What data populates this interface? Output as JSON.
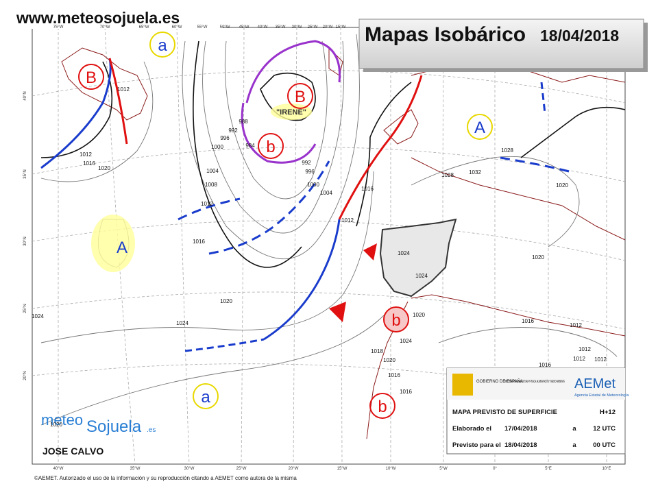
{
  "header": {
    "site": "www.meteosojuela.es",
    "title": "Mapas Isobárico",
    "date": "18/04/2018"
  },
  "systems": [
    "B",
    "B",
    "b",
    "A",
    "A",
    "a",
    "a",
    "b",
    "b"
  ],
  "storm_name": "\"IRENE\"",
  "isobar_labels": [
    "1012",
    "1012",
    "1016",
    "1020",
    "996",
    "1000",
    "1004",
    "1008",
    "1012",
    "1016",
    "1020",
    "1024",
    "1024",
    "1020",
    "992",
    "988",
    "984",
    "992",
    "996",
    "1000",
    "1004",
    "1012",
    "1016",
    "1020",
    "1024",
    "1018",
    "1016",
    "1016",
    "1020",
    "1024",
    "1024",
    "1028",
    "1032",
    "1028",
    "1020",
    "1020",
    "1016",
    "1012",
    "1012",
    "1012",
    "1012",
    "1016"
  ],
  "lon_top": [
    "75°W",
    "70°W",
    "65°W",
    "60°W",
    "55°W",
    "50°W",
    "45°W",
    "40°W",
    "35°W",
    "30°W",
    "25°W",
    "20°W",
    "15°W"
  ],
  "lon_bottom": [
    "40°W",
    "35°W",
    "30°W",
    "25°W",
    "20°W",
    "15°W",
    "10°W",
    "5°W",
    "0°",
    "5°E",
    "10°E"
  ],
  "lat_left": [
    "40°N",
    "35°N",
    "30°N",
    "25°N",
    "20°N"
  ],
  "info": {
    "gov": "GOBIERNO DE ESPAÑA",
    "ministry": "MINISTERIO DE AGRICULTURA Y PESCA, ALIMENTACIÓN Y MEDIO AMBIENTE",
    "agency": "AEMet",
    "agency_full": "Agencia Estatal de Meteorología",
    "rows": [
      [
        "MAPA PREVISTO DE SUPERFICIE",
        "H+12"
      ],
      [
        "Elaborado el",
        "17/04/2018",
        "a",
        "12 UTC"
      ],
      [
        "Previsto para el",
        "18/04/2018",
        "a",
        "00 UTC"
      ]
    ]
  },
  "logo": {
    "a": "meteo",
    "b": "Sojuela",
    "c": ".es"
  },
  "author": "JOSE CALVO",
  "footer": "©AEMET. Autorizado el uso de la información y su reproducción citando a AEMET como autora de la misma"
}
